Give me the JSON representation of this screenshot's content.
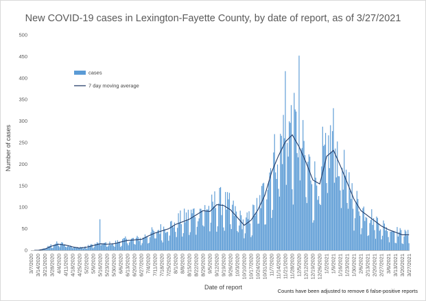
{
  "chart_data": {
    "type": "bar",
    "title": "New COVID-19 cases in Lexington-Fayette County, by date of report, as of 3/27/2021",
    "xlabel": "Date of report",
    "ylabel": "Number of cases",
    "ylim": [
      0,
      500
    ],
    "yticks": [
      0,
      50,
      100,
      150,
      200,
      250,
      300,
      350,
      400,
      450,
      500
    ],
    "xticks": [
      "3/7/2020",
      "3/14/2020",
      "3/21/2020",
      "3/28/2020",
      "4/4/2020",
      "4/11/2020",
      "4/18/2020",
      "4/25/2020",
      "5/2/2020",
      "5/9/2020",
      "5/16/2020",
      "5/23/2020",
      "5/30/2020",
      "6/6/2020",
      "6/13/2020",
      "6/20/2020",
      "6/27/2020",
      "7/4/2020",
      "7/11/2020",
      "7/18/2020",
      "7/25/2020",
      "8/1/2020",
      "8/8/2020",
      "8/15/2020",
      "8/22/2020",
      "8/29/2020",
      "9/5/2020",
      "9/12/2020",
      "9/19/2020",
      "9/26/2020",
      "10/3/2020",
      "10/10/2020",
      "10/17/2020",
      "10/24/2020",
      "10/31/2020",
      "11/7/2020",
      "11/14/2020",
      "11/21/2020",
      "11/28/2020",
      "12/5/2020",
      "12/12/2020",
      "12/19/2020",
      "12/26/2020",
      "1/2/2021",
      "1/9/2021",
      "1/16/2021",
      "1/23/2021",
      "1/30/2021",
      "2/6/2021",
      "2/13/2021",
      "2/20/2021",
      "2/27/2021",
      "3/6/2021",
      "3/13/2021",
      "3/20/2021",
      "3/27/2021"
    ],
    "legend_position": "top-left",
    "footnote": "Counts have been adjusted to remove 6 false-positive reports",
    "grid": false,
    "series": [
      {
        "name": "cases",
        "kind": "bar",
        "color": "#5b9bd5",
        "weekly_mean": [
          0,
          0,
          4,
          12,
          16,
          12,
          8,
          6,
          8,
          12,
          16,
          14,
          16,
          20,
          24,
          24,
          26,
          34,
          42,
          46,
          52,
          62,
          68,
          74,
          84,
          94,
          90,
          108,
          104,
          94,
          76,
          58,
          72,
          96,
          130,
          185,
          222,
          255,
          270,
          240,
          202,
          160,
          152,
          220,
          235,
          195,
          155,
          116,
          90,
          80,
          68,
          56,
          48,
          42,
          36,
          34
        ],
        "peaks": [
          {
            "date": "12/5/2020",
            "value": 452
          },
          {
            "date": "11/21/2020",
            "value": 416
          },
          {
            "date": "1/9/2021",
            "value": 330
          },
          {
            "date": "12/29/2020",
            "value": 287
          },
          {
            "date": "5/16/2020",
            "value": 72
          }
        ]
      },
      {
        "name": "7 day moving average",
        "kind": "line",
        "color": "#1f3864",
        "weekly_mean": [
          0,
          0,
          3,
          10,
          14,
          12,
          8,
          5,
          7,
          11,
          15,
          14,
          15,
          19,
          23,
          24,
          25,
          33,
          40,
          45,
          50,
          60,
          66,
          72,
          82,
          92,
          90,
          106,
          104,
          94,
          76,
          58,
          70,
          94,
          128,
          182,
          220,
          252,
          268,
          240,
          204,
          163,
          154,
          218,
          232,
          196,
          157,
          118,
          92,
          80,
          68,
          56,
          48,
          42,
          36,
          36
        ]
      }
    ]
  }
}
